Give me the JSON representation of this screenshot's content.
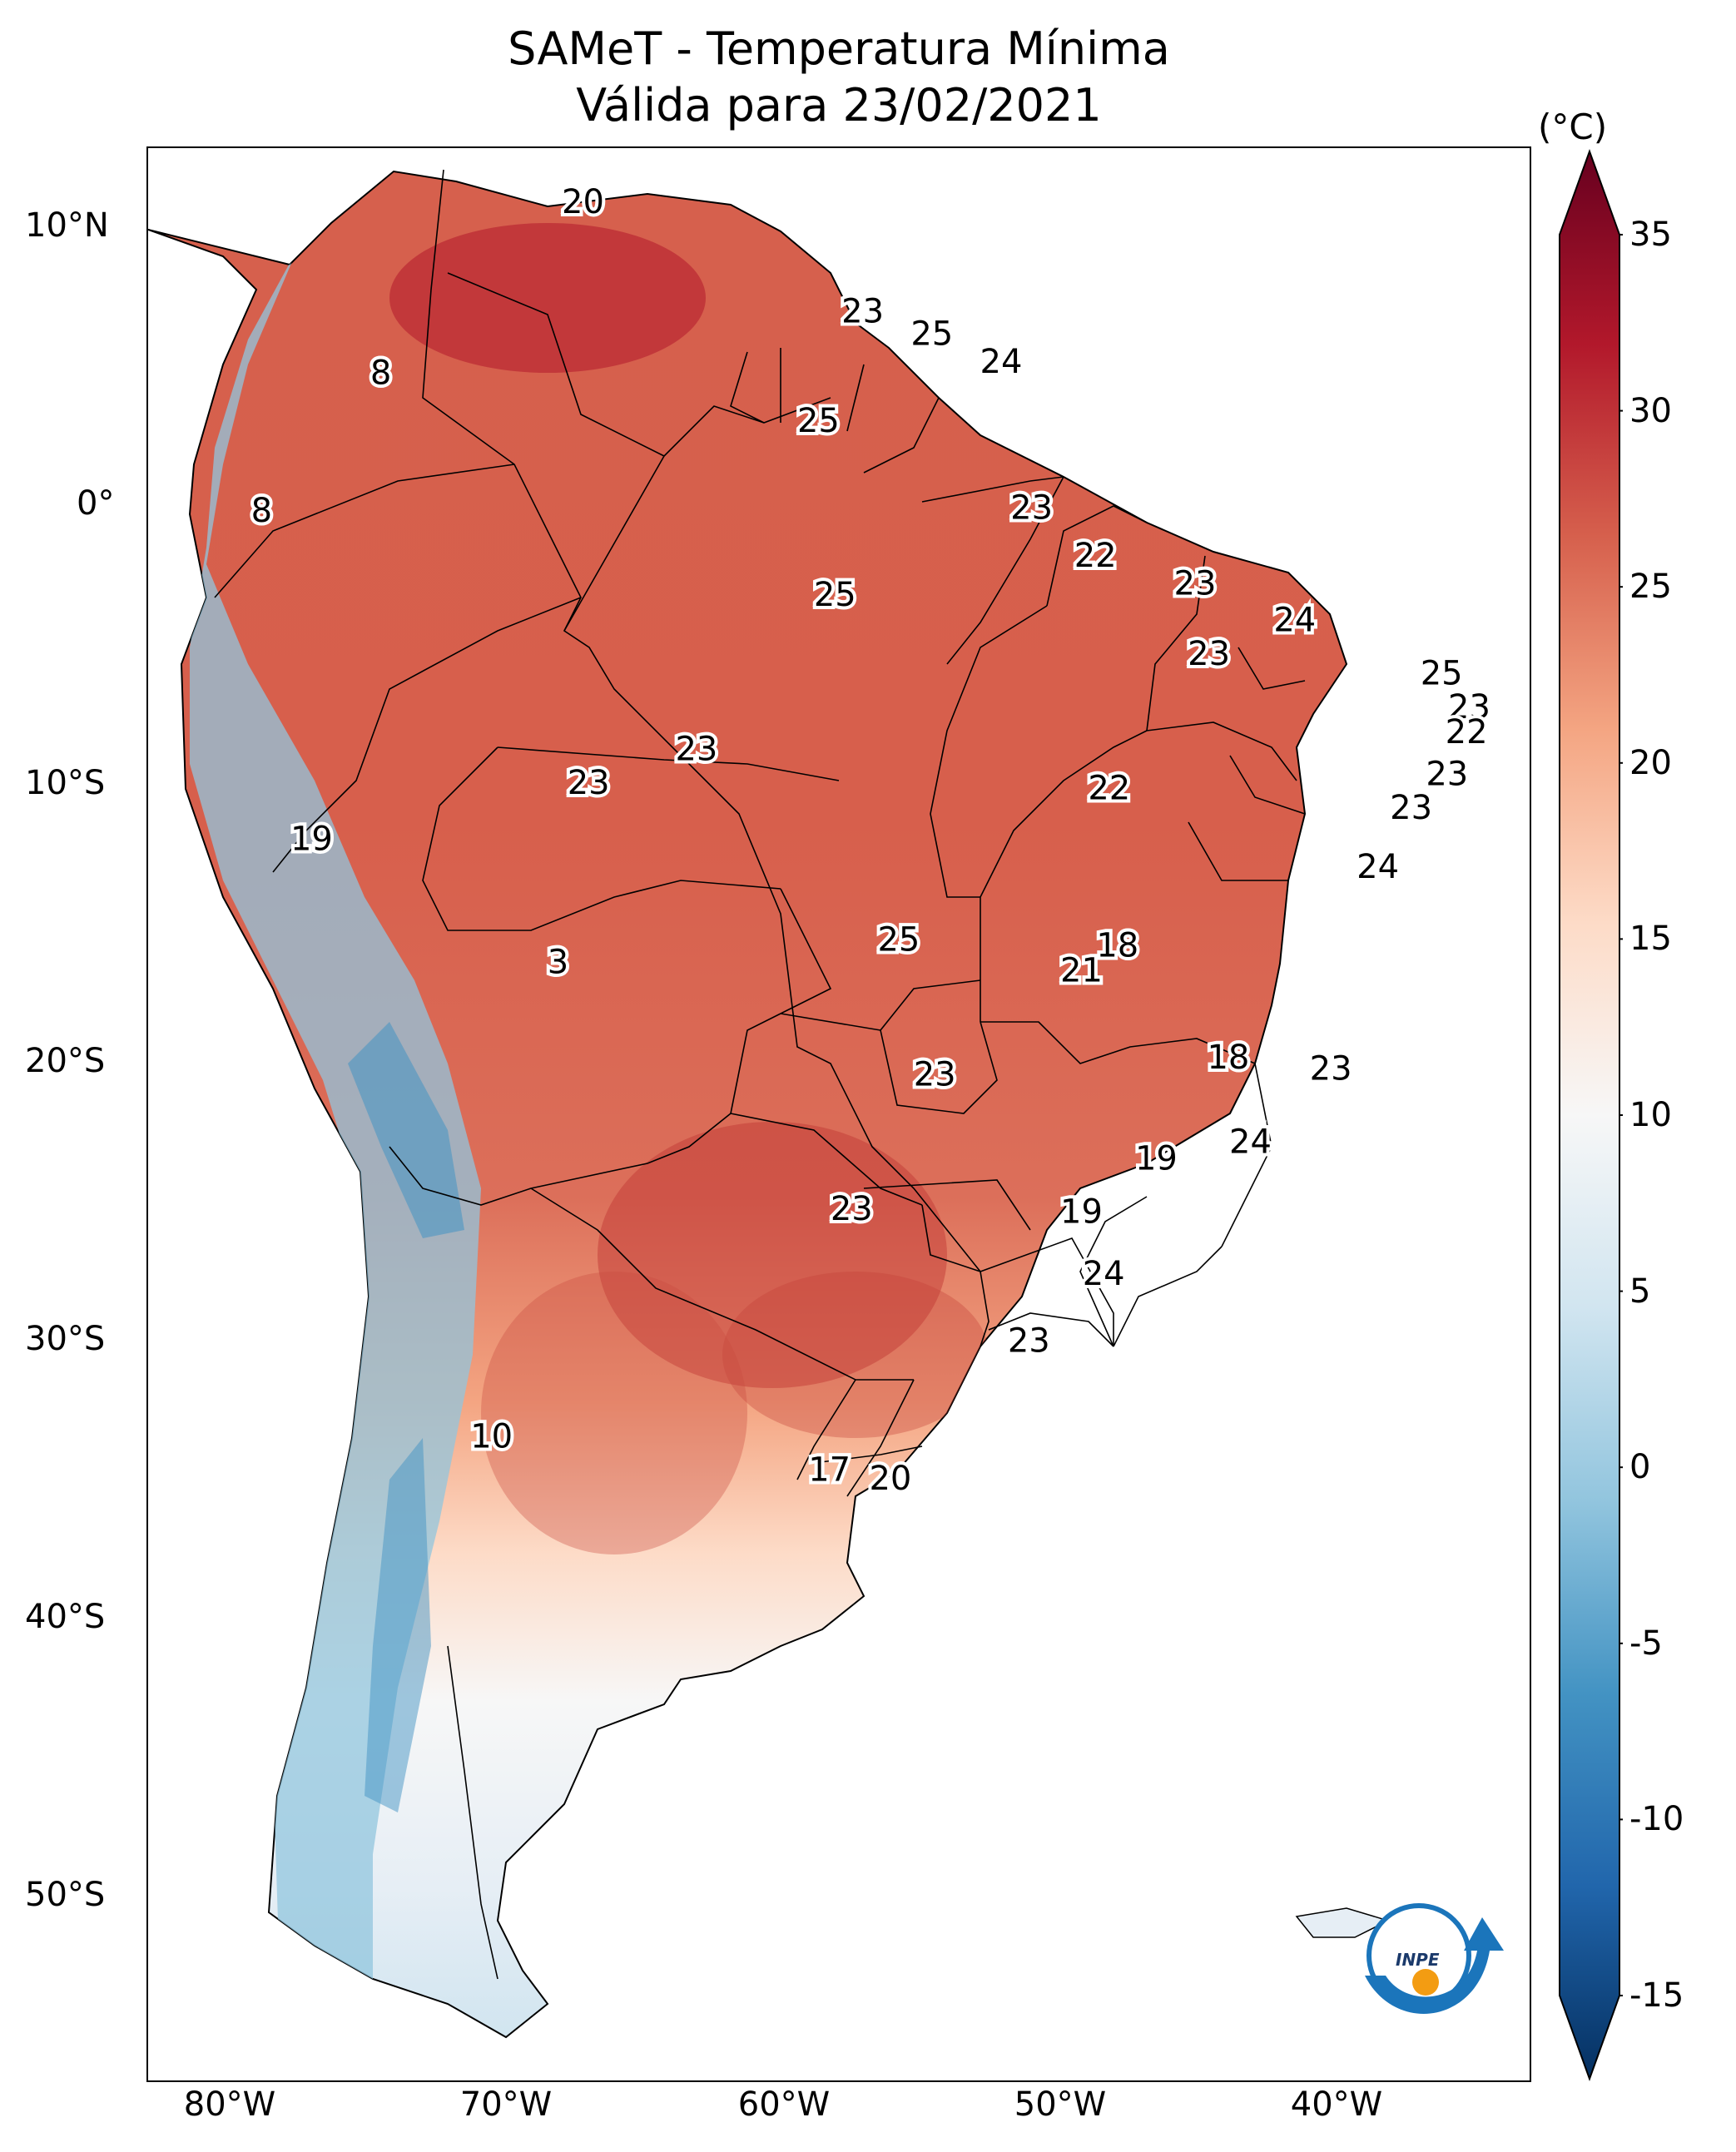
{
  "title": {
    "line1": "SAMeT - Temperatura Mínima",
    "line2": "Válida para 23/02/2021"
  },
  "map": {
    "lon_range": [
      -83,
      -33
    ],
    "lat_range": [
      -56.5,
      12.5
    ],
    "lat_ticks": [
      "10°N",
      "0°",
      "10°S",
      "20°S",
      "30°S",
      "40°S",
      "50°S"
    ],
    "lon_ticks": [
      "80°W",
      "70°W",
      "60°W",
      "50°W",
      "40°W"
    ],
    "logo_text": "INPE",
    "station_values": [
      {
        "lon": -67.3,
        "lat": 10.6,
        "value": "20"
      },
      {
        "lon": -57.2,
        "lat": 6.7,
        "value": "23"
      },
      {
        "lon": -54.7,
        "lat": 5.9,
        "value": "25"
      },
      {
        "lon": -52.2,
        "lat": 4.9,
        "value": "24"
      },
      {
        "lon": -74.6,
        "lat": 4.5,
        "value": "8"
      },
      {
        "lon": -58.8,
        "lat": 2.8,
        "value": "25"
      },
      {
        "lon": -51.1,
        "lat": -0.3,
        "value": "23"
      },
      {
        "lon": -48.8,
        "lat": -2.0,
        "value": "22"
      },
      {
        "lon": -78.9,
        "lat": -0.4,
        "value": "8"
      },
      {
        "lon": -58.2,
        "lat": -3.4,
        "value": "25"
      },
      {
        "lon": -45.2,
        "lat": -3.0,
        "value": "23"
      },
      {
        "lon": -41.6,
        "lat": -4.3,
        "value": "24"
      },
      {
        "lon": -44.7,
        "lat": -5.5,
        "value": "23"
      },
      {
        "lon": -36.3,
        "lat": -6.2,
        "value": "25"
      },
      {
        "lon": -35.3,
        "lat": -7.4,
        "value": "23"
      },
      {
        "lon": -35.4,
        "lat": -8.3,
        "value": "22"
      },
      {
        "lon": -36.1,
        "lat": -9.8,
        "value": "23"
      },
      {
        "lon": -63.2,
        "lat": -8.9,
        "value": "23"
      },
      {
        "lon": -67.1,
        "lat": -10.1,
        "value": "23"
      },
      {
        "lon": -48.3,
        "lat": -10.3,
        "value": "22"
      },
      {
        "lon": -37.4,
        "lat": -11.0,
        "value": "23"
      },
      {
        "lon": -77.1,
        "lat": -12.1,
        "value": "19"
      },
      {
        "lon": -38.6,
        "lat": -13.1,
        "value": "24"
      },
      {
        "lon": -55.9,
        "lat": -15.7,
        "value": "25"
      },
      {
        "lon": -48.0,
        "lat": -15.9,
        "value": "18"
      },
      {
        "lon": -49.3,
        "lat": -16.8,
        "value": "21"
      },
      {
        "lon": -68.2,
        "lat": -16.5,
        "value": "3"
      },
      {
        "lon": -44.0,
        "lat": -19.9,
        "value": "18"
      },
      {
        "lon": -40.3,
        "lat": -20.3,
        "value": "23"
      },
      {
        "lon": -54.6,
        "lat": -20.5,
        "value": "23"
      },
      {
        "lon": -43.2,
        "lat": -22.9,
        "value": "24"
      },
      {
        "lon": -46.6,
        "lat": -23.5,
        "value": "19"
      },
      {
        "lon": -57.6,
        "lat": -25.3,
        "value": "23"
      },
      {
        "lon": -49.3,
        "lat": -25.4,
        "value": "19"
      },
      {
        "lon": -48.5,
        "lat": -27.6,
        "value": "24"
      },
      {
        "lon": -51.2,
        "lat": -30.0,
        "value": "23"
      },
      {
        "lon": -70.6,
        "lat": -33.4,
        "value": "10"
      },
      {
        "lon": -58.4,
        "lat": -34.6,
        "value": "17"
      },
      {
        "lon": -56.2,
        "lat": -34.9,
        "value": "20"
      }
    ]
  },
  "colorbar": {
    "unit": "(°C)",
    "min": -15,
    "max": 35,
    "ticks": [
      "35",
      "30",
      "25",
      "20",
      "15",
      "10",
      "5",
      "0",
      "-5",
      "-10",
      "-15"
    ],
    "colors": [
      "#053061",
      "#2166ac",
      "#4393c3",
      "#92c5de",
      "#d1e5f0",
      "#f7f7f7",
      "#fddbc7",
      "#f4a582",
      "#d6604d",
      "#b2182b",
      "#67001f"
    ]
  }
}
